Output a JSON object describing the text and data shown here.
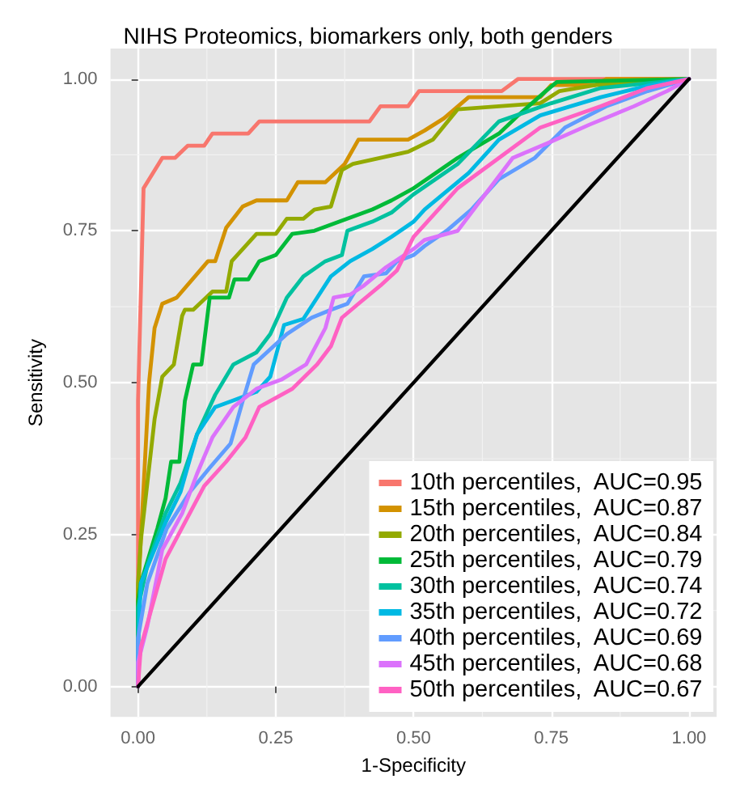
{
  "chart_data": {
    "type": "line",
    "title": "NIHS Proteomics, biomarkers only, both genders",
    "xlabel": "1-Specificity",
    "ylabel": "Sensitivity",
    "xlim": [
      -0.05,
      1.05
    ],
    "ylim": [
      -0.05,
      1.05
    ],
    "xticks": [
      {
        "value": 0,
        "label": "0.00"
      },
      {
        "value": 0.25,
        "label": "0.25"
      },
      {
        "value": 0.5,
        "label": "0.50"
      },
      {
        "value": 0.75,
        "label": "0.75"
      },
      {
        "value": 1,
        "label": "1.00"
      }
    ],
    "yticks": [
      {
        "value": 0,
        "label": "0.00"
      },
      {
        "value": 0.25,
        "label": "0.25"
      },
      {
        "value": 0.5,
        "label": "0.50"
      },
      {
        "value": 0.75,
        "label": "0.75"
      },
      {
        "value": 1,
        "label": "1.00"
      }
    ],
    "grid": true,
    "legend": "bottom right",
    "marker": "none",
    "line_style": "solid",
    "series": [
      {
        "name": "10th percentiles,  AUC=0.95",
        "color": "#f8766d",
        "x": [
          0,
          0,
          0.01,
          0.044,
          0.067,
          0.09,
          0.12,
          0.135,
          0.2,
          0.22,
          0.42,
          0.44,
          0.49,
          0.51,
          0.66,
          0.69,
          1
        ],
        "values": [
          0,
          0.47,
          0.82,
          0.87,
          0.87,
          0.89,
          0.89,
          0.91,
          0.91,
          0.93,
          0.93,
          0.955,
          0.955,
          0.98,
          0.98,
          1,
          1
        ]
      },
      {
        "name": "15th percentiles,  AUC=0.87",
        "color": "#d39200",
        "x": [
          0,
          0,
          0.005,
          0.02,
          0.03,
          0.044,
          0.07,
          0.127,
          0.14,
          0.16,
          0.19,
          0.215,
          0.27,
          0.29,
          0.34,
          0.375,
          0.4,
          0.49,
          0.52,
          0.555,
          0.6,
          0.73,
          0.75,
          0.83,
          0.85,
          1
        ],
        "values": [
          0,
          0.15,
          0.24,
          0.5,
          0.59,
          0.63,
          0.64,
          0.7,
          0.7,
          0.755,
          0.79,
          0.8,
          0.8,
          0.83,
          0.83,
          0.86,
          0.9,
          0.9,
          0.915,
          0.935,
          0.97,
          0.97,
          0.99,
          0.99,
          1,
          1
        ]
      },
      {
        "name": "20th percentiles,  AUC=0.84",
        "color": "#93aa00",
        "x": [
          0,
          0,
          0.005,
          0.03,
          0.044,
          0.065,
          0.08,
          0.085,
          0.1,
          0.135,
          0.16,
          0.17,
          0.215,
          0.25,
          0.27,
          0.3,
          0.32,
          0.35,
          0.37,
          0.39,
          0.44,
          0.49,
          0.535,
          0.58,
          0.73,
          0.765,
          0.83,
          1
        ],
        "values": [
          0,
          0.17,
          0.24,
          0.44,
          0.51,
          0.53,
          0.61,
          0.62,
          0.62,
          0.65,
          0.65,
          0.7,
          0.745,
          0.745,
          0.77,
          0.77,
          0.785,
          0.79,
          0.85,
          0.86,
          0.87,
          0.88,
          0.9,
          0.95,
          0.96,
          0.98,
          0.99,
          1
        ]
      },
      {
        "name": "25th percentiles,  AUC=0.79",
        "color": "#00ba38",
        "x": [
          0,
          0,
          0.005,
          0.035,
          0.05,
          0.06,
          0.075,
          0.085,
          0.1,
          0.115,
          0.13,
          0.165,
          0.175,
          0.2,
          0.22,
          0.25,
          0.28,
          0.32,
          0.365,
          0.425,
          0.46,
          0.5,
          0.58,
          0.655,
          0.69,
          0.74,
          0.76,
          1
        ],
        "values": [
          0,
          0.14,
          0.17,
          0.26,
          0.31,
          0.37,
          0.37,
          0.47,
          0.53,
          0.53,
          0.64,
          0.64,
          0.67,
          0.67,
          0.7,
          0.71,
          0.745,
          0.75,
          0.765,
          0.785,
          0.8,
          0.82,
          0.87,
          0.91,
          0.94,
          0.98,
          0.995,
          1
        ]
      },
      {
        "name": "30th percentiles,  AUC=0.74",
        "color": "#00c19f",
        "x": [
          0,
          0,
          0.017,
          0.05,
          0.077,
          0.107,
          0.14,
          0.173,
          0.215,
          0.24,
          0.27,
          0.3,
          0.34,
          0.37,
          0.38,
          0.425,
          0.46,
          0.5,
          0.58,
          0.655,
          0.75,
          0.84,
          1
        ],
        "values": [
          0,
          0.13,
          0.2,
          0.285,
          0.335,
          0.415,
          0.48,
          0.53,
          0.55,
          0.58,
          0.64,
          0.675,
          0.7,
          0.71,
          0.75,
          0.765,
          0.78,
          0.81,
          0.86,
          0.93,
          0.96,
          0.985,
          1
        ]
      },
      {
        "name": "35th percentiles,  AUC=0.72",
        "color": "#00b9e3",
        "x": [
          0,
          0,
          0.005,
          0.05,
          0.077,
          0.107,
          0.14,
          0.17,
          0.215,
          0.24,
          0.265,
          0.3,
          0.325,
          0.35,
          0.385,
          0.425,
          0.46,
          0.5,
          0.52,
          0.6,
          0.655,
          0.73,
          0.84,
          0.93,
          1
        ],
        "values": [
          0,
          0.065,
          0.17,
          0.27,
          0.32,
          0.415,
          0.46,
          0.47,
          0.485,
          0.51,
          0.595,
          0.605,
          0.64,
          0.675,
          0.7,
          0.72,
          0.74,
          0.765,
          0.785,
          0.845,
          0.9,
          0.94,
          0.97,
          0.99,
          1
        ]
      },
      {
        "name": "40th percentiles,  AUC=0.69",
        "color": "#619cff",
        "x": [
          0,
          0,
          0.017,
          0.052,
          0.094,
          0.13,
          0.168,
          0.19,
          0.21,
          0.24,
          0.27,
          0.315,
          0.35,
          0.38,
          0.41,
          0.45,
          0.47,
          0.5,
          0.52,
          0.56,
          0.605,
          0.655,
          0.72,
          0.775,
          0.85,
          0.925,
          1
        ],
        "values": [
          0,
          0.08,
          0.17,
          0.26,
          0.32,
          0.36,
          0.4,
          0.47,
          0.53,
          0.555,
          0.58,
          0.607,
          0.62,
          0.63,
          0.675,
          0.68,
          0.7,
          0.71,
          0.725,
          0.75,
          0.785,
          0.835,
          0.87,
          0.92,
          0.955,
          0.98,
          1
        ]
      },
      {
        "name": "45th percentiles,  AUC=0.68",
        "color": "#db72fb",
        "x": [
          0,
          0,
          0.017,
          0.044,
          0.08,
          0.107,
          0.135,
          0.173,
          0.215,
          0.26,
          0.305,
          0.34,
          0.355,
          0.385,
          0.41,
          0.45,
          0.5,
          0.52,
          0.58,
          0.63,
          0.68,
          0.745,
          0.82,
          0.9,
          0.96,
          1
        ],
        "values": [
          0,
          0.04,
          0.1,
          0.225,
          0.285,
          0.35,
          0.41,
          0.46,
          0.49,
          0.505,
          0.53,
          0.59,
          0.64,
          0.645,
          0.66,
          0.69,
          0.72,
          0.735,
          0.75,
          0.81,
          0.87,
          0.895,
          0.925,
          0.955,
          0.98,
          1
        ]
      },
      {
        "name": "50th percentiles,  AUC=0.67",
        "color": "#ff61c3",
        "x": [
          0,
          0.005,
          0.025,
          0.05,
          0.085,
          0.12,
          0.16,
          0.195,
          0.22,
          0.28,
          0.325,
          0.35,
          0.37,
          0.4,
          0.44,
          0.47,
          0.5,
          0.52,
          0.58,
          0.655,
          0.73,
          0.84,
          0.925,
          1
        ],
        "values": [
          0,
          0.065,
          0.13,
          0.21,
          0.27,
          0.33,
          0.37,
          0.41,
          0.46,
          0.49,
          0.53,
          0.56,
          0.607,
          0.63,
          0.66,
          0.685,
          0.74,
          0.76,
          0.82,
          0.87,
          0.92,
          0.955,
          0.985,
          1
        ]
      },
      {
        "color": "#000000",
        "x": [
          0,
          1
        ],
        "values": [
          0,
          1
        ]
      }
    ]
  }
}
